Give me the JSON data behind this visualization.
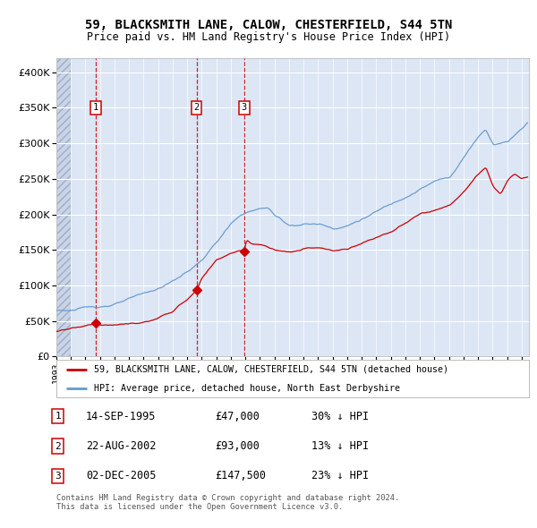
{
  "title": "59, BLACKSMITH LANE, CALOW, CHESTERFIELD, S44 5TN",
  "subtitle": "Price paid vs. HM Land Registry's House Price Index (HPI)",
  "transactions": [
    {
      "num": 1,
      "date": 1995.71,
      "price": 47000,
      "label": "14-SEP-1995",
      "price_str": "£47,000",
      "pct": "30% ↓ HPI"
    },
    {
      "num": 2,
      "date": 2002.64,
      "price": 93000,
      "label": "22-AUG-2002",
      "price_str": "£93,000",
      "pct": "13% ↓ HPI"
    },
    {
      "num": 3,
      "date": 2005.92,
      "price": 147500,
      "label": "02-DEC-2005",
      "price_str": "£147,500",
      "pct": "23% ↓ HPI"
    }
  ],
  "hpi_color": "#6699cc",
  "price_color": "#cc0000",
  "bg_color": "#dce6f5",
  "hatch_bg_color": "#c8d4e8",
  "grid_color": "#ffffff",
  "ylim": [
    0,
    420000
  ],
  "xlim_start": 1993.0,
  "xlim_end": 2025.5,
  "footer_text": "Contains HM Land Registry data © Crown copyright and database right 2024.\nThis data is licensed under the Open Government Licence v3.0.",
  "hpi_anchors_x": [
    1993.0,
    1994.0,
    1995.0,
    1996.0,
    1997.0,
    1998.0,
    1999.0,
    2000.0,
    2001.0,
    2002.0,
    2003.0,
    2004.0,
    2005.0,
    2006.0,
    2007.0,
    2007.5,
    2008.0,
    2009.0,
    2010.0,
    2011.0,
    2012.0,
    2013.0,
    2014.0,
    2015.0,
    2016.0,
    2017.0,
    2018.0,
    2019.0,
    2020.0,
    2021.0,
    2022.0,
    2022.5,
    2023.0,
    2024.0,
    2025.0,
    2025.4
  ],
  "hpi_anchors_y": [
    65000,
    66000,
    68000,
    71000,
    75000,
    80000,
    87000,
    94000,
    105000,
    118000,
    135000,
    160000,
    185000,
    200000,
    205000,
    207000,
    195000,
    182000,
    185000,
    185000,
    180000,
    185000,
    195000,
    205000,
    215000,
    228000,
    240000,
    250000,
    255000,
    285000,
    315000,
    325000,
    305000,
    310000,
    330000,
    340000
  ],
  "prop_anchors_x": [
    1993.0,
    1994.0,
    1995.0,
    1995.71,
    1996.0,
    1997.0,
    1998.0,
    1999.0,
    2000.0,
    2001.0,
    2002.0,
    2002.64,
    2003.0,
    2004.0,
    2005.0,
    2005.92,
    2006.0,
    2006.5,
    2007.0,
    2007.5,
    2008.0,
    2009.0,
    2010.0,
    2011.0,
    2012.0,
    2013.0,
    2014.0,
    2015.0,
    2016.0,
    2017.0,
    2018.0,
    2019.0,
    2020.0,
    2021.0,
    2022.0,
    2022.5,
    2023.0,
    2023.5,
    2024.0,
    2024.5,
    2025.0,
    2025.4
  ],
  "prop_anchors_y": [
    35000,
    40000,
    44000,
    47000,
    46500,
    46000,
    47000,
    49000,
    53000,
    64000,
    80000,
    93000,
    110000,
    135000,
    145000,
    147500,
    162000,
    157000,
    157000,
    153000,
    148000,
    143000,
    147000,
    148000,
    142000,
    145000,
    155000,
    163000,
    172000,
    183000,
    195000,
    200000,
    205000,
    225000,
    248000,
    258000,
    230000,
    218000,
    238000,
    250000,
    245000,
    248000
  ]
}
